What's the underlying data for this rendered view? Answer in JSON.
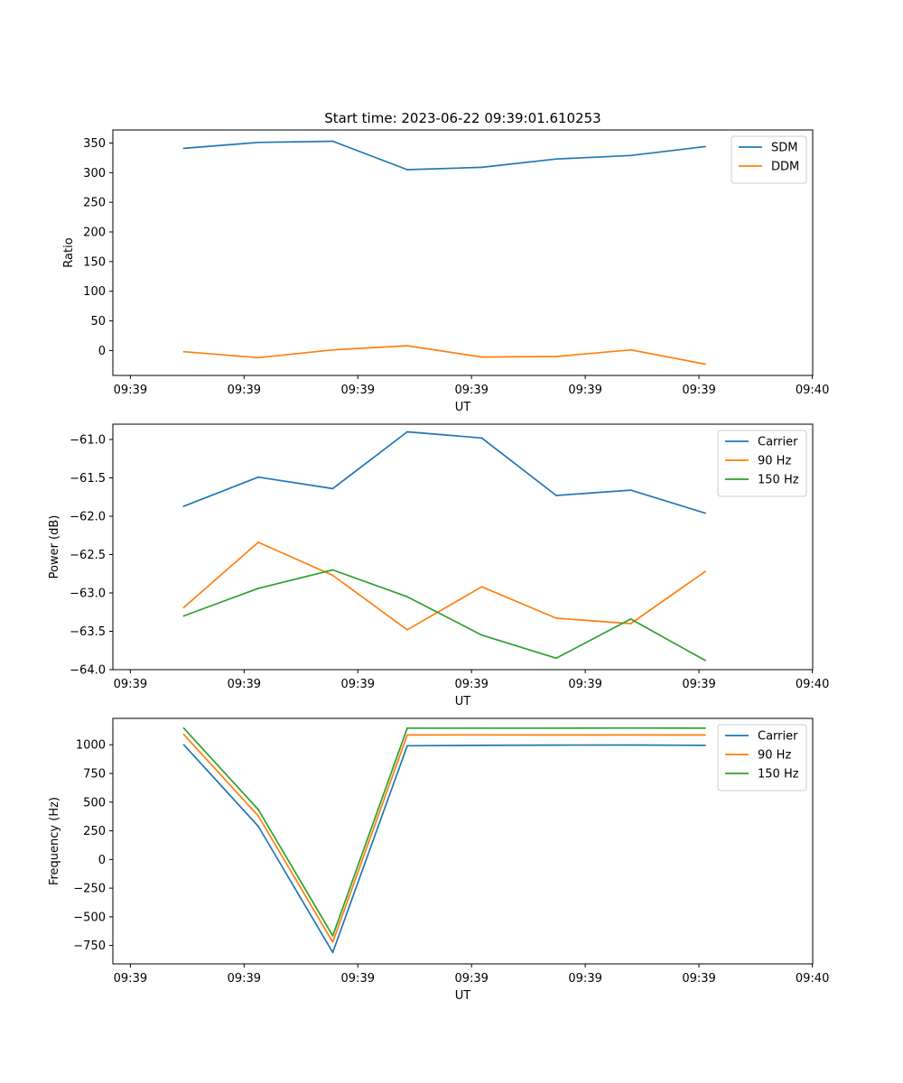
{
  "figure": {
    "title": "Start time: 2023-06-22 09:39:01.610253"
  },
  "chart_data": [
    {
      "type": "line",
      "xlabel": "UT",
      "ylabel": "Ratio",
      "x_tick_labels": [
        "09:39",
        "09:39",
        "09:39",
        "09:39",
        "09:39",
        "09:39",
        "09:40"
      ],
      "ylim": [
        -42,
        372
      ],
      "y_ticks": [
        0,
        50,
        100,
        150,
        200,
        250,
        300,
        350
      ],
      "grid": false,
      "legend_position": "top-right",
      "series": [
        {
          "name": "SDM",
          "color": "#1f77b4",
          "values": [
            341,
            351,
            353,
            305,
            309,
            323,
            329,
            344
          ]
        },
        {
          "name": "DDM",
          "color": "#ff7f0e",
          "values": [
            -2,
            -12,
            1,
            8,
            -11,
            -10,
            1,
            -23
          ]
        }
      ]
    },
    {
      "type": "line",
      "xlabel": "UT",
      "ylabel": "Power (dB)",
      "x_tick_labels": [
        "09:39",
        "09:39",
        "09:39",
        "09:39",
        "09:39",
        "09:39",
        "09:40"
      ],
      "ylim": [
        -64.0,
        -60.8
      ],
      "y_ticks": [
        -64.0,
        -63.5,
        -63.0,
        -62.5,
        -62.0,
        -61.5,
        -61.0
      ],
      "grid": false,
      "legend_position": "top-right",
      "series": [
        {
          "name": "Carrier",
          "color": "#1f77b4",
          "values": [
            -61.87,
            -61.49,
            -61.64,
            -60.9,
            -60.98,
            -61.73,
            -61.66,
            -61.96
          ]
        },
        {
          "name": "90 Hz",
          "color": "#ff7f0e",
          "values": [
            -63.19,
            -62.34,
            -62.77,
            -63.48,
            -62.92,
            -63.33,
            -63.4,
            -62.72
          ]
        },
        {
          "name": "150 Hz",
          "color": "#2ca02c",
          "values": [
            -63.3,
            -62.94,
            -62.7,
            -63.05,
            -63.55,
            -63.85,
            -63.34,
            -63.88
          ]
        }
      ]
    },
    {
      "type": "line",
      "xlabel": "UT",
      "ylabel": "Frequency (Hz)",
      "x_tick_labels": [
        "09:39",
        "09:39",
        "09:39",
        "09:39",
        "09:39",
        "09:39",
        "09:40"
      ],
      "ylim": [
        -910,
        1230
      ],
      "y_ticks": [
        -750,
        -500,
        -250,
        0,
        250,
        500,
        750,
        1000
      ],
      "grid": false,
      "legend_position": "top-right",
      "series": [
        {
          "name": "Carrier",
          "color": "#1f77b4",
          "values": [
            1000,
            290,
            -810,
            992,
            995,
            997,
            998,
            995
          ]
        },
        {
          "name": "90 Hz",
          "color": "#ff7f0e",
          "values": [
            1090,
            380,
            -720,
            1085,
            1086,
            1085,
            1085,
            1085
          ]
        },
        {
          "name": "150 Hz",
          "color": "#2ca02c",
          "values": [
            1145,
            435,
            -665,
            1145,
            1145,
            1145,
            1146,
            1145
          ]
        }
      ]
    }
  ]
}
